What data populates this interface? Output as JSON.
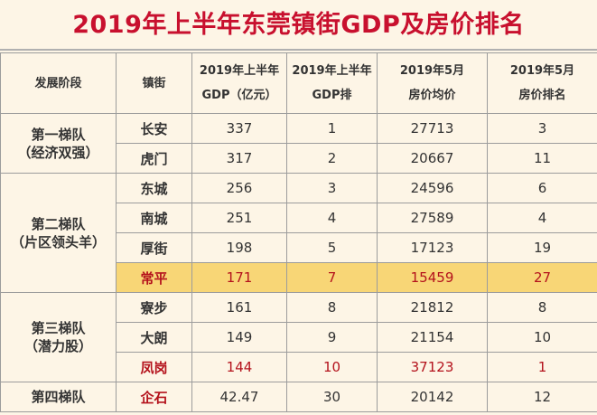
{
  "title": "2019年上半年东莞镇街GDP及房价排名",
  "headers": {
    "stage": "发展阶段",
    "town": "镇街",
    "gdp_line1": "2019年上半年",
    "gdp_line2": "GDP（亿元）",
    "gdp_rank_line1": "2019年上半年",
    "gdp_rank_line2": "GDP排",
    "price_line1": "2019年5月",
    "price_line2": "房价均价",
    "price_rank_line1": "2019年5月",
    "price_rank_line2": "房价排名"
  },
  "groups": [
    {
      "name": "第一梯队",
      "desc": "（经济双强）"
    },
    {
      "name": "第二梯队",
      "desc": "（片区领头羊）"
    },
    {
      "name": "第三梯队",
      "desc": "（潜力股）"
    },
    {
      "name": "第四梯队",
      "desc": ""
    }
  ],
  "rows": [
    {
      "town": "长安",
      "gdp": "337",
      "gdp_rank": "1",
      "price": "27713",
      "price_rank": "3"
    },
    {
      "town": "虎门",
      "gdp": "317",
      "gdp_rank": "2",
      "price": "20667",
      "price_rank": "11"
    },
    {
      "town": "东城",
      "gdp": "256",
      "gdp_rank": "3",
      "price": "24596",
      "price_rank": "6"
    },
    {
      "town": "南城",
      "gdp": "251",
      "gdp_rank": "4",
      "price": "27589",
      "price_rank": "4"
    },
    {
      "town": "厚街",
      "gdp": "198",
      "gdp_rank": "5",
      "price": "17123",
      "price_rank": "19"
    },
    {
      "town": "常平",
      "gdp": "171",
      "gdp_rank": "7",
      "price": "15459",
      "price_rank": "27"
    },
    {
      "town": "寮步",
      "gdp": "161",
      "gdp_rank": "8",
      "price": "21812",
      "price_rank": "8"
    },
    {
      "town": "大朗",
      "gdp": "149",
      "gdp_rank": "9",
      "price": "21154",
      "price_rank": "10"
    },
    {
      "town": "凤岗",
      "gdp": "144",
      "gdp_rank": "10",
      "price": "37123",
      "price_rank": "1"
    },
    {
      "town": "企石",
      "gdp": "42.47",
      "gdp_rank": "30",
      "price": "20142",
      "price_rank": "12"
    }
  ],
  "highlight_color": "#f8d676",
  "accent_color": "#c8102e"
}
